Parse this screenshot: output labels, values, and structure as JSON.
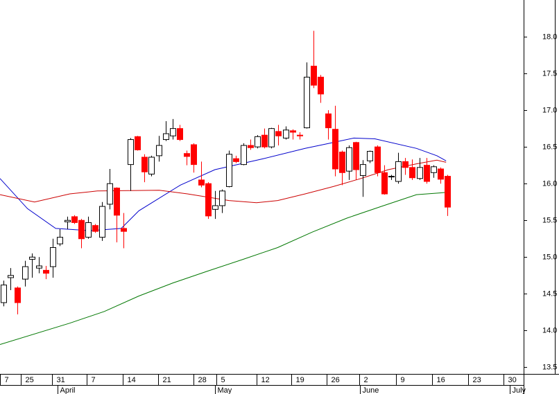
{
  "chart_data": {
    "type": "candlestick",
    "x": [
      0,
      1,
      2,
      3,
      4,
      5,
      6,
      7,
      8,
      9,
      10,
      11,
      12,
      13,
      14,
      15,
      16,
      17,
      18,
      19,
      20,
      21,
      22,
      23,
      24,
      25,
      26,
      27,
      28,
      29,
      30,
      31,
      32,
      33,
      34,
      35,
      36,
      37,
      38,
      39,
      40,
      41,
      42,
      43,
      44,
      45,
      46,
      47,
      48,
      49,
      50,
      51,
      52,
      53,
      54,
      55,
      56,
      57,
      58,
      59,
      60,
      61,
      62,
      63
    ],
    "open": [
      14.38,
      14.72,
      14.58,
      14.7,
      14.97,
      14.85,
      14.82,
      14.87,
      15.18,
      15.48,
      15.55,
      15.5,
      15.27,
      15.43,
      15.27,
      15.72,
      15.94,
      15.39,
      16.26,
      16.64,
      16.36,
      16.13,
      16.38,
      16.6,
      16.65,
      16.75,
      16.41,
      16.53,
      16.05,
      16.0,
      15.65,
      15.7,
      15.96,
      16.34,
      16.26,
      16.52,
      16.5,
      16.66,
      16.5,
      16.71,
      16.62,
      16.72,
      16.66,
      16.76,
      17.6,
      17.45,
      16.95,
      16.74,
      16.43,
      16.17,
      16.56,
      16.11,
      16.31,
      16.5,
      16.15,
      16.1,
      16.03,
      16.3,
      16.22,
      16.07,
      16.25,
      16.15,
      16.2,
      16.1
    ],
    "high": [
      14.68,
      14.85,
      14.6,
      14.95,
      15.05,
      15.0,
      14.88,
      15.25,
      15.38,
      15.55,
      15.57,
      15.52,
      15.55,
      15.45,
      15.75,
      16.2,
      15.95,
      15.6,
      16.62,
      16.65,
      16.4,
      16.38,
      16.65,
      16.85,
      16.88,
      16.8,
      16.45,
      16.55,
      16.3,
      16.02,
      15.9,
      15.92,
      16.45,
      16.38,
      16.55,
      16.6,
      16.66,
      16.75,
      16.76,
      16.8,
      16.78,
      16.74,
      16.7,
      17.65,
      18.08,
      17.48,
      17.0,
      17.06,
      16.45,
      16.52,
      16.57,
      16.32,
      16.45,
      16.52,
      16.25,
      16.12,
      16.42,
      16.35,
      16.33,
      16.35,
      16.35,
      16.25,
      16.22,
      16.12
    ],
    "low": [
      14.33,
      14.55,
      14.22,
      14.6,
      14.72,
      14.78,
      14.7,
      14.72,
      15.15,
      15.38,
      15.45,
      15.12,
      15.25,
      15.33,
      15.22,
      15.65,
      15.2,
      15.12,
      15.9,
      16.45,
      16.02,
      16.1,
      16.3,
      16.58,
      16.6,
      16.58,
      16.25,
      16.15,
      15.95,
      15.52,
      15.52,
      15.6,
      15.95,
      16.28,
      16.25,
      16.46,
      16.48,
      16.48,
      16.48,
      16.52,
      16.6,
      16.6,
      16.6,
      16.75,
      17.3,
      17.1,
      16.6,
      16.1,
      15.98,
      16.05,
      16.05,
      15.82,
      16.28,
      16.1,
      15.85,
      16.05,
      16.0,
      16.12,
      16.05,
      16.05,
      16.0,
      16.08,
      16.0,
      15.56
    ],
    "close": [
      14.62,
      14.75,
      14.38,
      14.87,
      15.0,
      14.88,
      14.78,
      15.13,
      15.27,
      15.5,
      15.47,
      15.25,
      15.47,
      15.35,
      15.69,
      16.0,
      15.57,
      15.35,
      16.6,
      16.46,
      16.16,
      16.36,
      16.52,
      16.68,
      16.75,
      16.6,
      16.37,
      16.26,
      15.98,
      15.56,
      15.7,
      15.9,
      16.4,
      16.3,
      16.52,
      16.49,
      16.64,
      16.5,
      16.75,
      16.65,
      16.73,
      16.7,
      16.65,
      17.45,
      17.34,
      17.22,
      16.76,
      16.2,
      16.15,
      16.49,
      16.19,
      16.26,
      16.44,
      16.15,
      15.86,
      16.1,
      16.3,
      16.22,
      16.08,
      16.22,
      16.03,
      16.23,
      16.06,
      15.68
    ],
    "up_color": "#ffffff",
    "down_color": "#ff0000",
    "series": [
      {
        "color": "#0000cc",
        "x": [
          -0.5,
          3.4,
          7.4,
          12.3,
          16.7,
          19.2,
          25.1,
          30.0,
          36.9,
          42.8,
          45.8,
          49.7,
          52.7,
          58.6,
          61.5,
          62.8
        ],
        "values": [
          16.07,
          15.66,
          15.39,
          15.36,
          15.39,
          15.63,
          15.98,
          16.19,
          16.34,
          16.48,
          16.54,
          16.62,
          16.61,
          16.48,
          16.38,
          16.31
        ]
      },
      {
        "color": "#cc0000",
        "x": [
          -0.5,
          4.4,
          9.4,
          13.3,
          22.1,
          26.1,
          32.0,
          35.9,
          38.9,
          42.8,
          46.8,
          50.7,
          54.6,
          58.6,
          61.5,
          62.8
        ],
        "values": [
          15.85,
          15.75,
          15.86,
          15.9,
          15.91,
          15.86,
          15.77,
          15.74,
          15.77,
          15.86,
          15.96,
          16.07,
          16.19,
          16.27,
          16.32,
          16.29
        ]
      },
      {
        "color": "#007700",
        "x": [
          -0.5,
          9.4,
          14.3,
          19.2,
          24.1,
          29.0,
          34.0,
          38.9,
          43.8,
          48.7,
          53.6,
          58.6,
          62.8
        ],
        "values": [
          13.81,
          14.1,
          14.26,
          14.47,
          14.65,
          14.81,
          14.97,
          15.13,
          15.34,
          15.53,
          15.69,
          15.85,
          15.88
        ]
      }
    ],
    "xlim": [
      -0.5,
      73.8
    ],
    "xticks": [
      {
        "value": -0.5,
        "label": "7"
      },
      {
        "value": 2.5,
        "label": "25"
      },
      {
        "value": 6.9,
        "label": "31"
      },
      {
        "value": 11.8,
        "label": "7"
      },
      {
        "value": 16.9,
        "label": "14"
      },
      {
        "value": 21.9,
        "label": "21"
      },
      {
        "value": 27,
        "label": "28"
      },
      {
        "value": 30.2,
        "label": "5"
      },
      {
        "value": 35.9,
        "label": "12"
      },
      {
        "value": 40.8,
        "label": "19"
      },
      {
        "value": 45.9,
        "label": "26"
      },
      {
        "value": 50.5,
        "label": "2"
      },
      {
        "value": 55.7,
        "label": "9"
      },
      {
        "value": 60.8,
        "label": "16"
      },
      {
        "value": 65.9,
        "label": "23"
      },
      {
        "value": 70.9,
        "label": "30"
      }
    ],
    "month_ticks": [
      {
        "value": 7.7,
        "label": "April"
      },
      {
        "value": 30,
        "label": "May"
      },
      {
        "value": 50.6,
        "label": "June"
      },
      {
        "value": 71.8,
        "label": "July"
      }
    ],
    "ylim": [
      13.4,
      18.5
    ],
    "yticks": [
      13.5,
      {
        "value": 14,
        "label": "14.0"
      },
      14.5,
      {
        "value": 15,
        "label": "15.0"
      },
      15.5,
      {
        "value": 16,
        "label": "16.0"
      },
      16.5,
      {
        "value": 17,
        "label": "17.0"
      },
      17.5,
      {
        "value": 18,
        "label": "18.0"
      }
    ]
  }
}
